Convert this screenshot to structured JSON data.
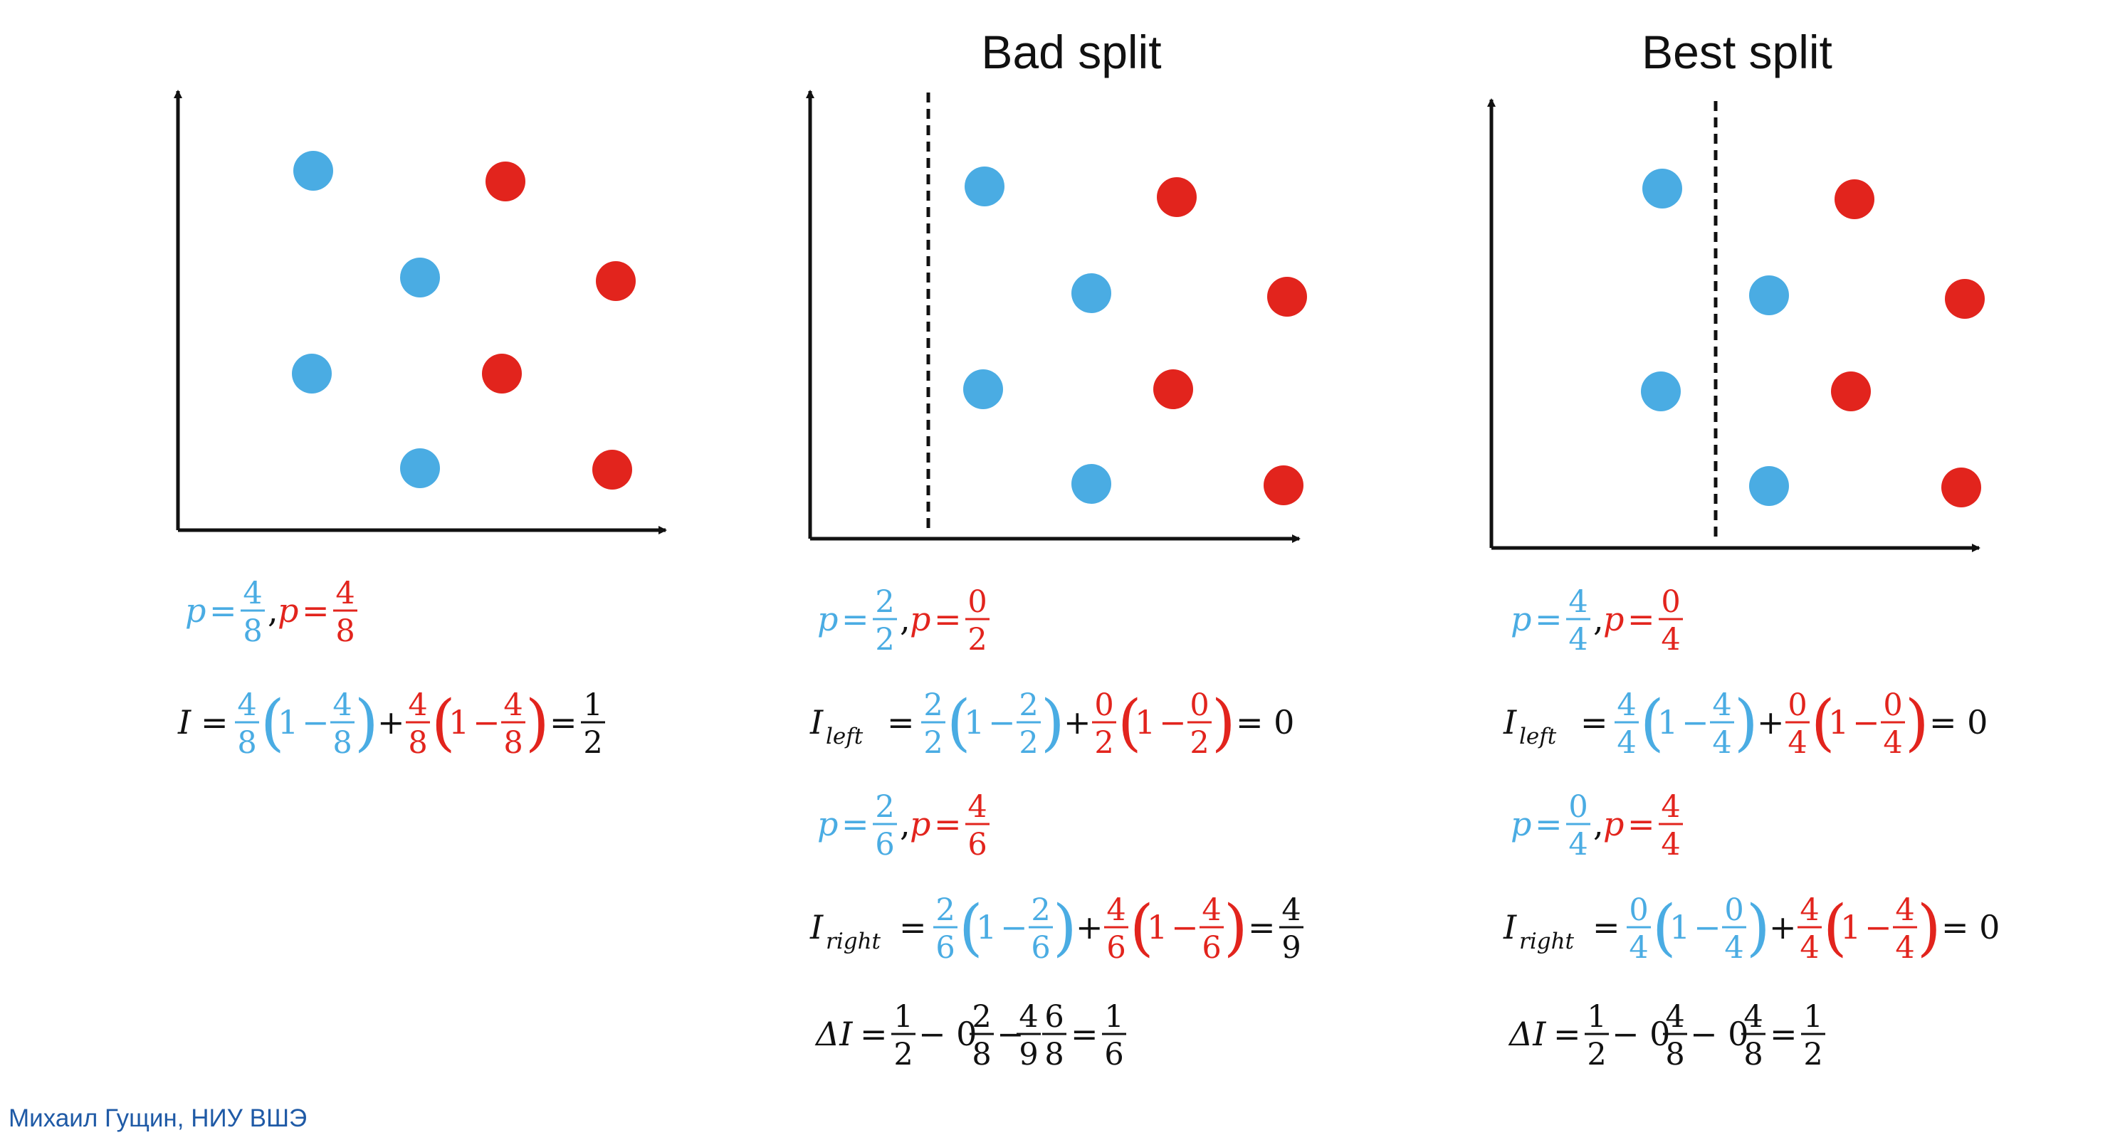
{
  "colors": {
    "class_a": "#4AACE3",
    "class_b": "#E2241D",
    "ink": "#111111",
    "footer": "#1F5AA6"
  },
  "footer": {
    "author": "Михаил Гущин, НИУ ВШЭ"
  },
  "panels": [
    {
      "title": "",
      "split": false,
      "blue_points": [
        [
          1,
          3
        ],
        [
          2,
          2
        ],
        [
          1,
          1
        ],
        [
          2,
          0
        ]
      ],
      "red_points": [
        [
          3,
          3
        ],
        [
          4,
          2
        ],
        [
          3,
          1
        ],
        [
          4,
          0
        ]
      ],
      "formulas": {
        "p_line": {
          "p": "p",
          "eq": "=",
          "blue_num": "4",
          "blue_den": "8",
          "comma": ",",
          "red_num": "4",
          "red_den": "8"
        },
        "impurity": {
          "lhs": "I",
          "sub": "",
          "eq": "=",
          "a_num": "4",
          "a_den": "8",
          "b_num": "4",
          "b_den": "8",
          "one": "1",
          "minus": "−",
          "plus": "+",
          "result_num": "1",
          "result_den": "2",
          "result": ""
        }
      }
    },
    {
      "title": "Bad split",
      "split": true,
      "blue_points": [
        [
          1,
          3
        ],
        [
          2,
          2
        ],
        [
          1,
          1
        ],
        [
          2,
          0
        ]
      ],
      "red_points": [
        [
          3,
          3
        ],
        [
          4,
          2
        ],
        [
          3,
          1
        ],
        [
          4,
          0
        ]
      ],
      "formulas": {
        "p_left": {
          "p": "p",
          "eq": "=",
          "blue_num": "2",
          "blue_den": "2",
          "comma": ",",
          "red_num": "0",
          "red_den": "2"
        },
        "i_left": {
          "lhs": "I",
          "sub": "left",
          "eq": "=",
          "a_num": "2",
          "a_den": "2",
          "b_num": "0",
          "b_den": "2",
          "one": "1",
          "minus": "−",
          "plus": "+",
          "result": "= 0"
        },
        "p_right": {
          "p": "p",
          "eq": "=",
          "blue_num": "2",
          "blue_den": "6",
          "comma": ",",
          "red_num": "4",
          "red_den": "6"
        },
        "i_right": {
          "lhs": "I",
          "sub": "right",
          "eq": "=",
          "a_num": "2",
          "a_den": "6",
          "b_num": "4",
          "b_den": "6",
          "one": "1",
          "minus": "−",
          "plus": "+",
          "result_num": "4",
          "result_den": "9",
          "result": ""
        },
        "delta": {
          "lhs": "ΔI",
          "eq": "=",
          "f1_num": "1",
          "f1_den": "2",
          "minus1": "− 0",
          "f2_num": "2",
          "f2_den": "8",
          "minus2": "−",
          "f3_num": "4",
          "f3_den": "9",
          "f4_num": "6",
          "f4_den": "8",
          "eq2": "=",
          "r_num": "1",
          "r_den": "6"
        }
      }
    },
    {
      "title": "Best split",
      "split": true,
      "blue_points": [
        [
          1,
          3
        ],
        [
          2,
          2
        ],
        [
          1,
          1
        ],
        [
          2,
          0
        ]
      ],
      "red_points": [
        [
          3,
          3
        ],
        [
          4,
          2
        ],
        [
          3,
          1
        ],
        [
          4,
          0
        ]
      ],
      "formulas": {
        "p_left": {
          "p": "p",
          "eq": "=",
          "blue_num": "4",
          "blue_den": "4",
          "comma": ",",
          "red_num": "0",
          "red_den": "4"
        },
        "i_left": {
          "lhs": "I",
          "sub": "left",
          "eq": "=",
          "a_num": "4",
          "a_den": "4",
          "b_num": "0",
          "b_den": "4",
          "one": "1",
          "minus": "−",
          "plus": "+",
          "result": "= 0"
        },
        "p_right": {
          "p": "p",
          "eq": "=",
          "blue_num": "0",
          "blue_den": "4",
          "comma": ",",
          "red_num": "4",
          "red_den": "4"
        },
        "i_right": {
          "lhs": "I",
          "sub": "right",
          "eq": "=",
          "a_num": "0",
          "a_den": "4",
          "b_num": "4",
          "b_den": "4",
          "one": "1",
          "minus": "−",
          "plus": "+",
          "result": "= 0"
        },
        "delta": {
          "lhs": "ΔI",
          "eq": "=",
          "f1_num": "1",
          "f1_den": "2",
          "minus1": "− 0",
          "f2_num": "4",
          "f2_den": "8",
          "minus2": "− 0",
          "f3_num": "4",
          "f3_den": "8",
          "f4_num": "",
          "f4_den": "",
          "eq2": "=",
          "r_num": "1",
          "r_den": "2"
        }
      }
    }
  ]
}
